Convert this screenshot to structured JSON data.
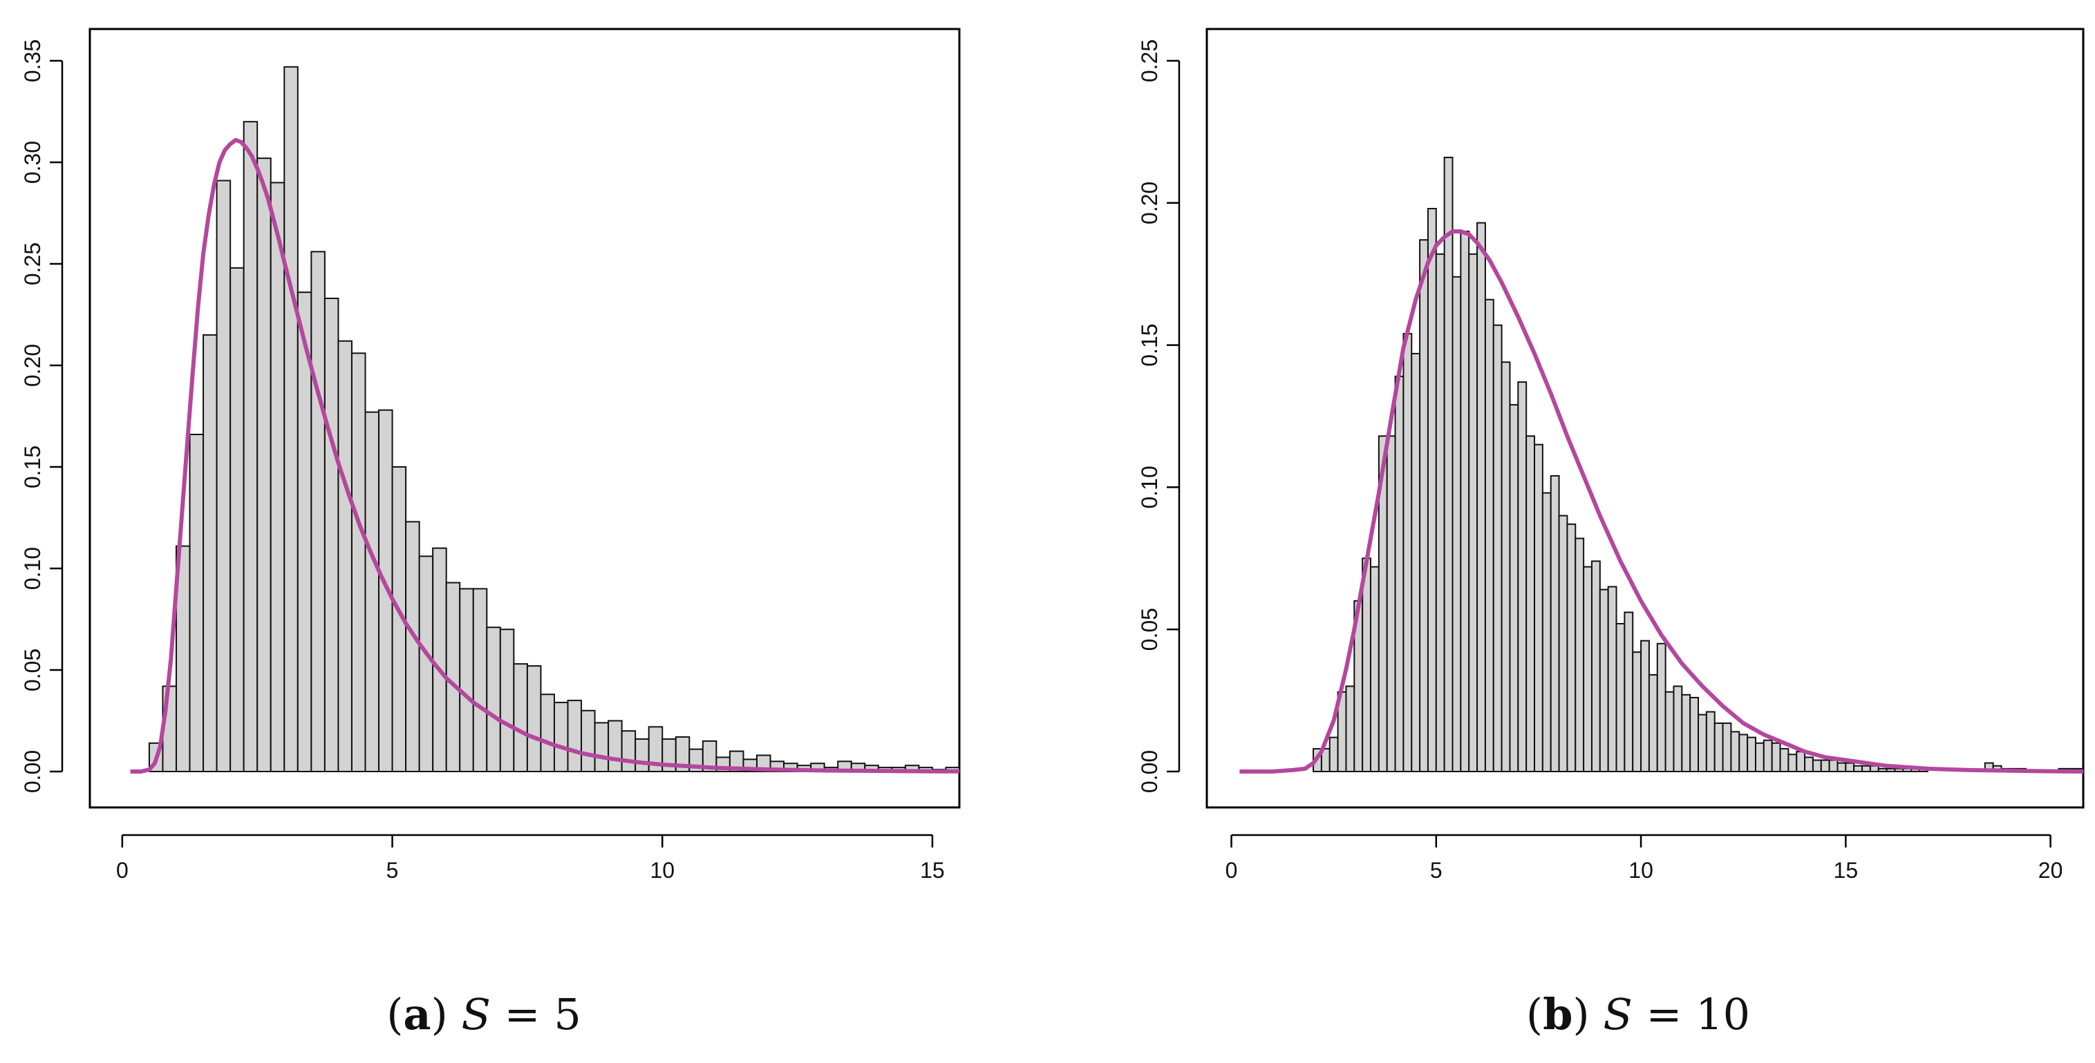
{
  "chart_data": [
    {
      "type": "bar",
      "caption": {
        "letter": "a",
        "var": "S",
        "eq": " = ",
        "value": "5"
      },
      "bin_width": 0.25,
      "bins_start": 0.5,
      "xlim": [
        0,
        15.5
      ],
      "ylim": [
        0,
        0.35
      ],
      "x_ticks": [
        0,
        5,
        10,
        15
      ],
      "y_ticks": [
        0.0,
        0.05,
        0.1,
        0.15,
        0.2,
        0.25,
        0.3,
        0.35
      ],
      "y_tick_labels": [
        "0.00",
        "0.05",
        "0.10",
        "0.15",
        "0.20",
        "0.25",
        "0.30",
        "0.35"
      ],
      "x_tick_labels": [
        "0",
        "5",
        "10",
        "15"
      ],
      "values": [
        0.014,
        0.042,
        0.111,
        0.166,
        0.215,
        0.291,
        0.248,
        0.32,
        0.302,
        0.29,
        0.347,
        0.236,
        0.256,
        0.233,
        0.212,
        0.206,
        0.177,
        0.178,
        0.15,
        0.123,
        0.106,
        0.11,
        0.093,
        0.09,
        0.09,
        0.071,
        0.07,
        0.053,
        0.052,
        0.038,
        0.034,
        0.035,
        0.03,
        0.024,
        0.025,
        0.02,
        0.016,
        0.022,
        0.016,
        0.017,
        0.011,
        0.015,
        0.007,
        0.01,
        0.006,
        0.008,
        0.005,
        0.004,
        0.003,
        0.004,
        0.002,
        0.005,
        0.004,
        0.003,
        0.002,
        0.002,
        0.003,
        0.002,
        0.001,
        0.002,
        0.002,
        0.001,
        0.001,
        0.002,
        0.001,
        0.001,
        0.001,
        0.001,
        0.001,
        0.001,
        0.0,
        0.0,
        0.0,
        0.0,
        0.0,
        0.0,
        0.0,
        0.0,
        0.0,
        0.002,
        0.001
      ],
      "density_curve": {
        "color": "#b5479e",
        "x": [
          0.15,
          0.35,
          0.5,
          0.6,
          0.7,
          0.8,
          0.9,
          1.0,
          1.1,
          1.2,
          1.3,
          1.4,
          1.5,
          1.6,
          1.7,
          1.8,
          1.9,
          2.0,
          2.1,
          2.2,
          2.3,
          2.4,
          2.5,
          2.6,
          2.7,
          2.8,
          2.9,
          3.0,
          3.2,
          3.4,
          3.6,
          3.8,
          4.0,
          4.2,
          4.4,
          4.6,
          4.8,
          5.0,
          5.25,
          5.5,
          5.75,
          6.0,
          6.5,
          7.0,
          7.5,
          8.0,
          8.5,
          9.0,
          9.5,
          10.0,
          11.0,
          12.0,
          13.0,
          14.0,
          15.0,
          15.5
        ],
        "y": [
          0.0,
          0.0,
          0.001,
          0.004,
          0.012,
          0.03,
          0.055,
          0.09,
          0.125,
          0.16,
          0.195,
          0.228,
          0.255,
          0.274,
          0.289,
          0.3,
          0.306,
          0.309,
          0.311,
          0.31,
          0.307,
          0.303,
          0.297,
          0.29,
          0.282,
          0.272,
          0.262,
          0.251,
          0.23,
          0.209,
          0.189,
          0.17,
          0.152,
          0.136,
          0.121,
          0.108,
          0.096,
          0.085,
          0.073,
          0.063,
          0.054,
          0.046,
          0.034,
          0.025,
          0.018,
          0.013,
          0.009,
          0.0065,
          0.0047,
          0.0034,
          0.0018,
          0.001,
          0.0005,
          0.0003,
          0.0001,
          0.0001
        ]
      }
    },
    {
      "type": "bar",
      "caption": {
        "letter": "b",
        "var": "S",
        "eq": " = ",
        "value": "10"
      },
      "bin_width": 0.2,
      "bins_start": 2.0,
      "xlim": [
        0,
        20.8
      ],
      "ylim": [
        0,
        0.25
      ],
      "x_ticks": [
        0,
        5,
        10,
        15,
        20
      ],
      "y_ticks": [
        0.0,
        0.05,
        0.1,
        0.15,
        0.2,
        0.25
      ],
      "y_tick_labels": [
        "0.00",
        "0.05",
        "0.10",
        "0.15",
        "0.20",
        "0.25"
      ],
      "x_tick_labels": [
        "0",
        "5",
        "10",
        "15",
        "20"
      ],
      "values": [
        0.008,
        0.008,
        0.012,
        0.028,
        0.03,
        0.06,
        0.075,
        0.072,
        0.118,
        0.118,
        0.139,
        0.154,
        0.147,
        0.187,
        0.198,
        0.182,
        0.216,
        0.174,
        0.19,
        0.182,
        0.193,
        0.166,
        0.157,
        0.144,
        0.129,
        0.137,
        0.118,
        0.115,
        0.098,
        0.104,
        0.09,
        0.087,
        0.082,
        0.072,
        0.074,
        0.064,
        0.065,
        0.052,
        0.056,
        0.042,
        0.046,
        0.034,
        0.045,
        0.028,
        0.03,
        0.027,
        0.026,
        0.02,
        0.021,
        0.017,
        0.017,
        0.014,
        0.013,
        0.012,
        0.01,
        0.011,
        0.01,
        0.008,
        0.006,
        0.007,
        0.005,
        0.004,
        0.004,
        0.004,
        0.003,
        0.003,
        0.002,
        0.002,
        0.002,
        0.001,
        0.001,
        0.001,
        0.001,
        0.001,
        0.001,
        0.0,
        0.0,
        0.0,
        0.0,
        0.0,
        0.0,
        0.0,
        0.003,
        0.002,
        0.001,
        0.001,
        0.001,
        0.0,
        0.0,
        0.0,
        0.0,
        0.001,
        0.001,
        0.001,
        0.001
      ],
      "density_curve": {
        "color": "#b5479e",
        "x": [
          0.2,
          1.0,
          1.5,
          1.8,
          2.0,
          2.2,
          2.5,
          2.8,
          3.0,
          3.3,
          3.6,
          3.9,
          4.2,
          4.5,
          4.8,
          5.0,
          5.2,
          5.4,
          5.6,
          5.8,
          6.0,
          6.3,
          6.6,
          7.0,
          7.4,
          7.8,
          8.2,
          8.6,
          9.0,
          9.5,
          10.0,
          10.5,
          11.0,
          11.5,
          12.0,
          12.5,
          13.0,
          13.5,
          14.0,
          14.5,
          15.0,
          16.0,
          17.0,
          18.0,
          19.0,
          20.0,
          20.8
        ],
        "y": [
          0.0,
          0.0,
          0.0005,
          0.001,
          0.003,
          0.007,
          0.018,
          0.036,
          0.05,
          0.074,
          0.098,
          0.124,
          0.149,
          0.166,
          0.179,
          0.185,
          0.188,
          0.19,
          0.19,
          0.189,
          0.186,
          0.18,
          0.172,
          0.16,
          0.147,
          0.133,
          0.118,
          0.104,
          0.09,
          0.074,
          0.06,
          0.048,
          0.038,
          0.03,
          0.023,
          0.017,
          0.013,
          0.01,
          0.007,
          0.005,
          0.004,
          0.002,
          0.001,
          0.0005,
          0.0003,
          0.0001,
          0.0
        ]
      }
    }
  ]
}
